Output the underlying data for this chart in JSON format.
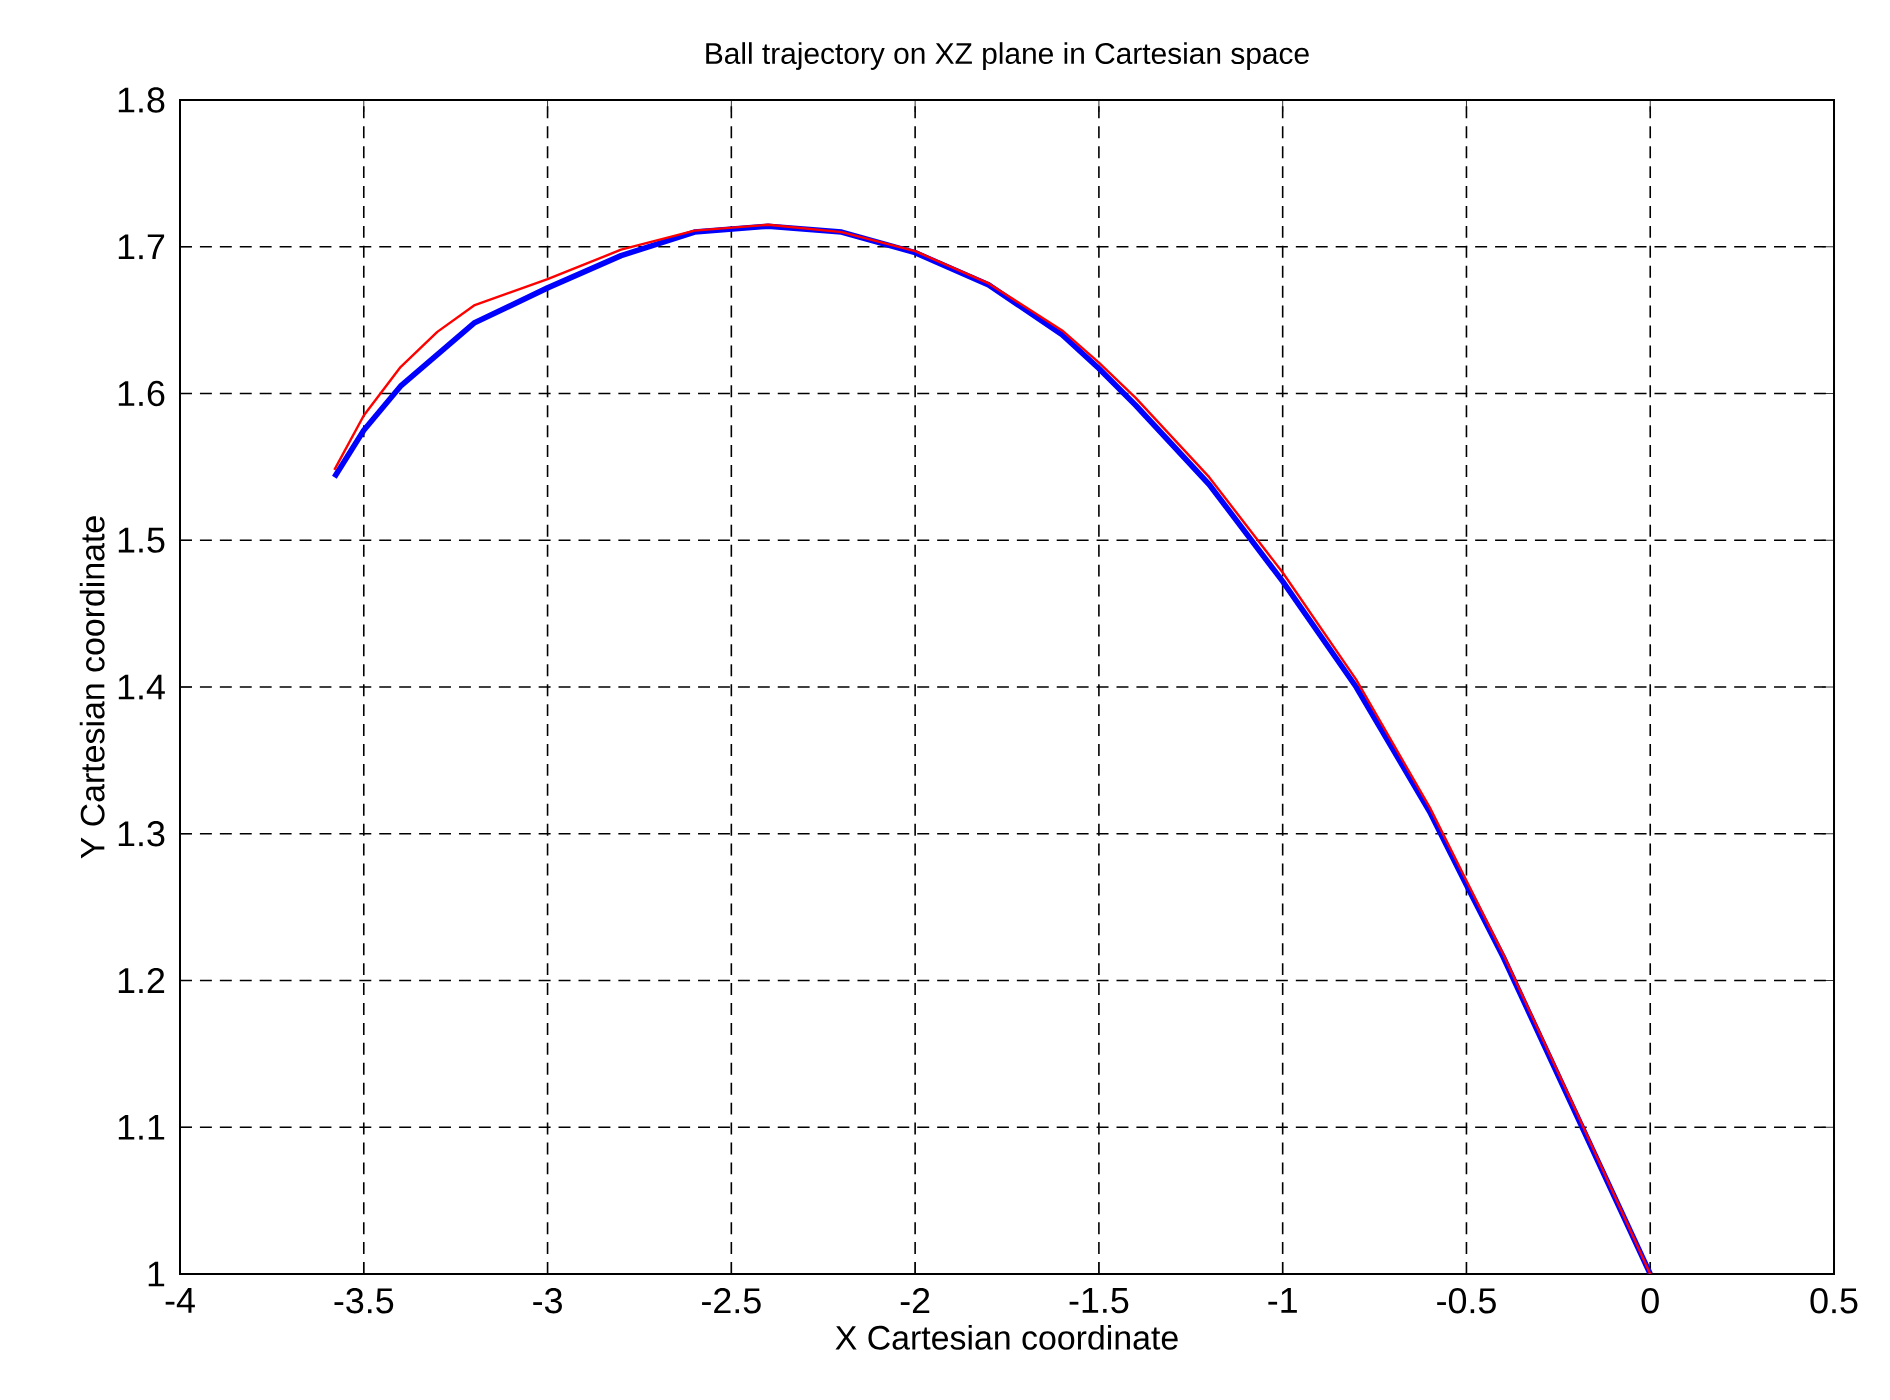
{
  "chart_data": {
    "type": "line",
    "title": "Ball trajectory on XZ plane in Cartesian space",
    "xlabel": "X Cartesian coordinate",
    "ylabel": "Y Cartesian coordinate",
    "xlim": [
      -4,
      0.5
    ],
    "ylim": [
      1,
      1.8
    ],
    "xticks": [
      -4,
      -3.5,
      -3,
      -2.5,
      -2,
      -1.5,
      -1,
      -0.5,
      0,
      0.5
    ],
    "yticks": [
      1,
      1.1,
      1.2,
      1.3,
      1.4,
      1.5,
      1.6,
      1.7,
      1.8
    ],
    "grid": true,
    "marker": "none",
    "line_style": "solid",
    "series": [
      {
        "color": "#0000ff",
        "x": [
          -3.58,
          -3.5,
          -3.4,
          -3.2,
          -3.0,
          -2.8,
          -2.6,
          -2.4,
          -2.2,
          -2.0,
          -1.8,
          -1.6,
          -1.5,
          -1.4,
          -1.2,
          -1.0,
          -0.8,
          -0.6,
          -0.5,
          -0.4,
          -0.2,
          0
        ],
        "values": [
          1.543,
          1.575,
          1.605,
          1.648,
          1.672,
          1.694,
          1.71,
          1.714,
          1.71,
          1.696,
          1.674,
          1.64,
          1.617,
          1.592,
          1.538,
          1.472,
          1.4,
          1.315,
          1.265,
          1.216,
          1.108,
          1.0
        ]
      },
      {
        "color": "#ff0000",
        "x": [
          -3.58,
          -3.5,
          -3.4,
          -3.3,
          -3.2,
          -3.0,
          -2.8,
          -2.6,
          -2.4,
          -2.2,
          -2.0,
          -1.8,
          -1.6,
          -1.5,
          -1.4,
          -1.2,
          -1.0,
          -0.8,
          -0.6,
          -0.5,
          -0.4,
          -0.2,
          0
        ],
        "values": [
          1.548,
          1.585,
          1.618,
          1.642,
          1.66,
          1.678,
          1.698,
          1.711,
          1.715,
          1.71,
          1.697,
          1.675,
          1.643,
          1.621,
          1.597,
          1.543,
          1.478,
          1.405,
          1.318,
          1.268,
          1.218,
          1.11,
          1.0
        ]
      }
    ]
  }
}
